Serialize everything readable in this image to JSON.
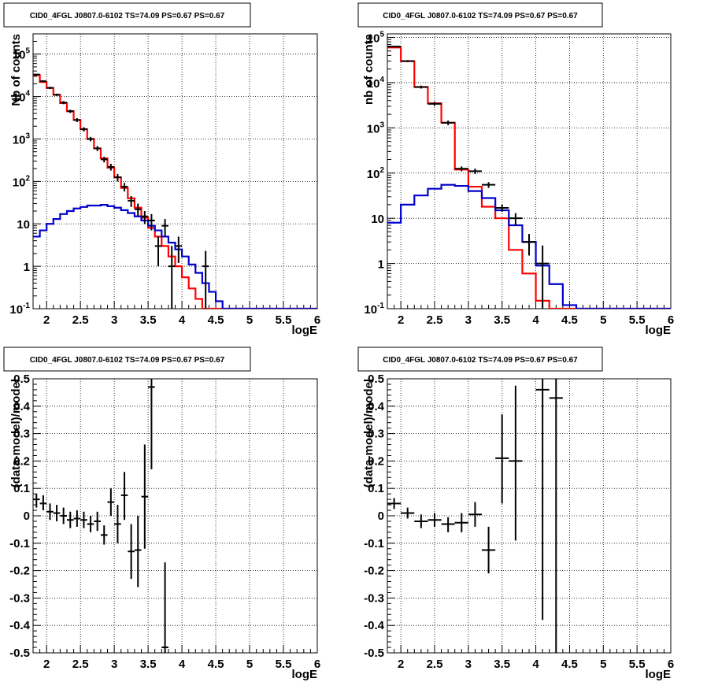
{
  "panel_title": "CID0_4FGL J0807.0-6102 TS=74.09 PS=0.67 PS=0.67",
  "colors": {
    "data": "#000000",
    "total_model": "#ff0000",
    "source_model": "#0000cc"
  },
  "chart_data": [
    {
      "id": "counts-fine",
      "type": "line",
      "title": "CID0_4FGL J0807.0-6102 TS=74.09 PS=0.67 PS=0.67",
      "xlabel": "logE",
      "ylabel": "Nb of counts",
      "xlim": [
        1.8,
        6.0
      ],
      "ylim": [
        0.1,
        300000
      ],
      "yscale": "log",
      "grid": true,
      "x_ticks": [
        "2",
        "2.5",
        "3",
        "3.5",
        "4",
        "4.5",
        "5",
        "5.5",
        "6"
      ],
      "y_ticks": [
        "10^-1",
        "1",
        "10",
        "10^2",
        "10^3",
        "10^4",
        "10^5"
      ],
      "bin_edges": [
        1.8,
        1.9,
        2.0,
        2.1,
        2.2,
        2.3,
        2.4,
        2.5,
        2.6,
        2.7,
        2.8,
        2.9,
        3.0,
        3.1,
        3.2,
        3.3,
        3.4,
        3.5,
        3.6,
        3.7,
        3.8,
        3.9,
        4.0,
        4.1,
        4.2,
        4.3,
        4.4,
        4.5,
        4.6,
        4.7,
        4.8,
        4.9,
        5.0,
        5.1,
        5.2,
        5.3,
        5.4,
        5.5,
        5.6,
        5.7,
        5.8,
        5.9,
        6.0
      ],
      "series": [
        {
          "name": "",
          "role": "total_model",
          "values": [
            32000,
            22000,
            16000,
            11000,
            7000,
            4500,
            2800,
            1700,
            1000,
            600,
            350,
            210,
            125,
            70,
            40,
            24,
            14,
            8,
            5,
            3,
            1.7,
            1,
            0.55,
            0.3,
            0.17,
            0.1,
            0.1,
            0.1,
            0.1,
            0.1,
            0.1,
            0.1,
            0.1,
            0.1,
            0.1,
            0.1,
            0.1,
            0.1,
            0.1,
            0.1,
            0.1,
            0.1
          ]
        },
        {
          "name": "",
          "role": "source_model",
          "values": [
            5,
            7,
            10,
            13,
            17,
            20,
            23,
            25,
            27,
            27,
            28,
            26,
            24,
            21,
            18,
            15,
            12,
            9,
            7,
            5,
            3.6,
            2.5,
            1.7,
            1.1,
            0.7,
            0.4,
            0.25,
            0.15,
            0.1,
            0.1,
            0.1,
            0.1,
            0.1,
            0.1,
            0.1,
            0.1,
            0.1,
            0.1,
            0.1,
            0.1,
            0.1,
            0.1
          ]
        }
      ],
      "points": [
        {
          "x": 1.85,
          "y": 33000,
          "ylo": 31500,
          "yhi": 34500
        },
        {
          "x": 1.95,
          "y": 23000,
          "ylo": 21800,
          "yhi": 24200
        },
        {
          "x": 2.05,
          "y": 16000,
          "ylo": 15000,
          "yhi": 17000
        },
        {
          "x": 2.15,
          "y": 11000,
          "ylo": 10300,
          "yhi": 11700
        },
        {
          "x": 2.25,
          "y": 7200,
          "ylo": 6600,
          "yhi": 7800
        },
        {
          "x": 2.35,
          "y": 4500,
          "ylo": 4100,
          "yhi": 4900
        },
        {
          "x": 2.45,
          "y": 2800,
          "ylo": 2500,
          "yhi": 3100
        },
        {
          "x": 2.55,
          "y": 1700,
          "ylo": 1500,
          "yhi": 1900
        },
        {
          "x": 2.65,
          "y": 1000,
          "ylo": 880,
          "yhi": 1120
        },
        {
          "x": 2.75,
          "y": 600,
          "ylo": 520,
          "yhi": 680
        },
        {
          "x": 2.85,
          "y": 330,
          "ylo": 280,
          "yhi": 380
        },
        {
          "x": 2.95,
          "y": 220,
          "ylo": 180,
          "yhi": 260
        },
        {
          "x": 3.05,
          "y": 125,
          "ylo": 100,
          "yhi": 150
        },
        {
          "x": 3.15,
          "y": 75,
          "ylo": 58,
          "yhi": 92
        },
        {
          "x": 3.25,
          "y": 35,
          "ylo": 25,
          "yhi": 45
        },
        {
          "x": 3.35,
          "y": 22,
          "ylo": 15,
          "yhi": 30
        },
        {
          "x": 3.45,
          "y": 15,
          "ylo": 10,
          "yhi": 20
        },
        {
          "x": 3.55,
          "y": 12,
          "ylo": 7,
          "yhi": 17
        },
        {
          "x": 3.65,
          "y": 3,
          "ylo": 1,
          "yhi": 5
        },
        {
          "x": 3.75,
          "y": 9,
          "ylo": 5,
          "yhi": 13
        },
        {
          "x": 3.85,
          "y": 1,
          "ylo": 0.1,
          "yhi": 3
        },
        {
          "x": 3.95,
          "y": 3,
          "ylo": 1.2,
          "yhi": 5
        },
        {
          "x": 4.35,
          "y": 1,
          "ylo": 0.1,
          "yhi": 2.3
        }
      ]
    },
    {
      "id": "counts-coarse",
      "type": "line",
      "title": "CID0_4FGL J0807.0-6102 TS=74.09 PS=0.67 PS=0.67",
      "xlabel": "logE",
      "ylabel": "nb of counts",
      "xlim": [
        1.8,
        6.0
      ],
      "ylim": [
        0.1,
        120000
      ],
      "yscale": "log",
      "grid": true,
      "x_ticks": [
        "2",
        "2.5",
        "3",
        "3.5",
        "4",
        "4.5",
        "5",
        "5.5",
        "6"
      ],
      "y_ticks": [
        "10^-1",
        "1",
        "10",
        "10^2",
        "10^3",
        "10^4",
        "10^5"
      ],
      "bin_edges": [
        1.8,
        2.0,
        2.2,
        2.4,
        2.6,
        2.8,
        3.0,
        3.2,
        3.4,
        3.6,
        3.8,
        4.0,
        4.2,
        4.4,
        4.6,
        4.8,
        5.0,
        5.2,
        5.4,
        5.6,
        5.8,
        6.0
      ],
      "series": [
        {
          "name": "",
          "role": "total_model",
          "values": [
            60000,
            30000,
            8000,
            3500,
            1300,
            120,
            50,
            18,
            10,
            2,
            0.6,
            0.15,
            0.1,
            0.1,
            0.1,
            0.1,
            0.1,
            0.1,
            0.1,
            0.1,
            0.1
          ]
        },
        {
          "name": "",
          "role": "source_model",
          "values": [
            8,
            20,
            32,
            45,
            55,
            52,
            40,
            28,
            15,
            7,
            3,
            0.9,
            0.35,
            0.12,
            0.1,
            0.1,
            0.1,
            0.1,
            0.1,
            0.1,
            0.1
          ]
        }
      ],
      "points": [
        {
          "x": 1.9,
          "y": 63000,
          "ylo": 61000,
          "yhi": 65000
        },
        {
          "x": 2.1,
          "y": 30000,
          "ylo": 28500,
          "yhi": 31500
        },
        {
          "x": 2.3,
          "y": 8000,
          "ylo": 7400,
          "yhi": 8600
        },
        {
          "x": 2.5,
          "y": 3400,
          "ylo": 3050,
          "yhi": 3750
        },
        {
          "x": 2.7,
          "y": 1300,
          "ylo": 1150,
          "yhi": 1450
        },
        {
          "x": 2.9,
          "y": 125,
          "ylo": 110,
          "yhi": 140
        },
        {
          "x": 3.1,
          "y": 110,
          "ylo": 95,
          "yhi": 125
        },
        {
          "x": 3.3,
          "y": 55,
          "ylo": 47,
          "yhi": 63
        },
        {
          "x": 3.5,
          "y": 17,
          "ylo": 14,
          "yhi": 20
        },
        {
          "x": 3.7,
          "y": 10,
          "ylo": 7,
          "yhi": 13
        },
        {
          "x": 3.9,
          "y": 3,
          "ylo": 1.5,
          "yhi": 4.5
        },
        {
          "x": 4.1,
          "y": 1,
          "ylo": 0.1,
          "yhi": 2.5
        }
      ]
    },
    {
      "id": "residuals-fine",
      "type": "scatter",
      "title": "CID0_4FGL J0807.0-6102 TS=74.09 PS=0.67 PS=0.67",
      "xlabel": "logE",
      "ylabel": "(data-model)/model",
      "xlim": [
        1.8,
        6.0
      ],
      "ylim": [
        -0.5,
        0.5
      ],
      "grid": true,
      "x_ticks": [
        "2",
        "2.5",
        "3",
        "3.5",
        "4",
        "4.5",
        "5",
        "5.5",
        "6"
      ],
      "y_ticks": [
        "-0.5",
        "-0.4",
        "-0.3",
        "-0.2",
        "-0.1",
        "0",
        "0.1",
        "0.2",
        "0.3",
        "0.4",
        "0.5"
      ],
      "points": [
        {
          "x": 1.85,
          "y": 0.06,
          "ylo": 0.03,
          "yhi": 0.08
        },
        {
          "x": 1.95,
          "y": 0.045,
          "ylo": 0.02,
          "yhi": 0.075
        },
        {
          "x": 2.05,
          "y": 0.015,
          "ylo": -0.015,
          "yhi": 0.045
        },
        {
          "x": 2.15,
          "y": 0.01,
          "ylo": -0.02,
          "yhi": 0.04
        },
        {
          "x": 2.25,
          "y": 0.0,
          "ylo": -0.03,
          "yhi": 0.03
        },
        {
          "x": 2.35,
          "y": -0.015,
          "ylo": -0.045,
          "yhi": 0.015
        },
        {
          "x": 2.45,
          "y": -0.01,
          "ylo": -0.04,
          "yhi": 0.02
        },
        {
          "x": 2.55,
          "y": -0.015,
          "ylo": -0.045,
          "yhi": 0.015
        },
        {
          "x": 2.65,
          "y": -0.03,
          "ylo": -0.06,
          "yhi": 0.0
        },
        {
          "x": 2.75,
          "y": -0.02,
          "ylo": -0.055,
          "yhi": 0.015
        },
        {
          "x": 2.85,
          "y": -0.07,
          "ylo": -0.105,
          "yhi": -0.035
        },
        {
          "x": 2.95,
          "y": 0.05,
          "ylo": 0.0,
          "yhi": 0.1
        },
        {
          "x": 3.05,
          "y": -0.03,
          "ylo": -0.1,
          "yhi": 0.04
        },
        {
          "x": 3.15,
          "y": 0.075,
          "ylo": -0.015,
          "yhi": 0.16
        },
        {
          "x": 3.25,
          "y": -0.13,
          "ylo": -0.23,
          "yhi": -0.03
        },
        {
          "x": 3.35,
          "y": -0.125,
          "ylo": -0.26,
          "yhi": 0.0
        },
        {
          "x": 3.45,
          "y": 0.07,
          "ylo": -0.12,
          "yhi": 0.26
        },
        {
          "x": 3.55,
          "y": 0.47,
          "ylo": 0.17,
          "yhi": 0.5
        },
        {
          "x": 3.75,
          "y": -0.48,
          "ylo": -0.5,
          "yhi": -0.17
        }
      ]
    },
    {
      "id": "residuals-coarse",
      "type": "scatter",
      "title": "CID0_4FGL J0807.0-6102 TS=74.09 PS=0.67 PS=0.67",
      "xlabel": "logE",
      "ylabel": "(data-model)/model",
      "xlim": [
        1.8,
        6.0
      ],
      "ylim": [
        -0.5,
        0.5
      ],
      "grid": true,
      "x_ticks": [
        "2",
        "2.5",
        "3",
        "3.5",
        "4",
        "4.5",
        "5",
        "5.5",
        "6"
      ],
      "y_ticks": [
        "-0.5",
        "-0.4",
        "-0.3",
        "-0.2",
        "-0.1",
        "0",
        "0.1",
        "0.2",
        "0.3",
        "0.4",
        "0.5"
      ],
      "points": [
        {
          "x": 1.9,
          "y": 0.045,
          "ylo": 0.025,
          "yhi": 0.065
        },
        {
          "x": 2.1,
          "y": 0.01,
          "ylo": -0.01,
          "yhi": 0.03
        },
        {
          "x": 2.3,
          "y": -0.02,
          "ylo": -0.045,
          "yhi": 0.005
        },
        {
          "x": 2.5,
          "y": -0.015,
          "ylo": -0.04,
          "yhi": 0.01
        },
        {
          "x": 2.7,
          "y": -0.03,
          "ylo": -0.06,
          "yhi": -0.005
        },
        {
          "x": 2.9,
          "y": -0.025,
          "ylo": -0.06,
          "yhi": 0.01
        },
        {
          "x": 3.1,
          "y": 0.005,
          "ylo": -0.04,
          "yhi": 0.05
        },
        {
          "x": 3.3,
          "y": -0.125,
          "ylo": -0.21,
          "yhi": -0.04
        },
        {
          "x": 3.5,
          "y": 0.21,
          "ylo": 0.045,
          "yhi": 0.37
        },
        {
          "x": 3.7,
          "y": 0.2,
          "ylo": -0.09,
          "yhi": 0.475
        },
        {
          "x": 4.1,
          "y": 0.46,
          "ylo": -0.38,
          "yhi": 0.5
        },
        {
          "x": 4.3,
          "y": 0.43,
          "ylo": -0.5,
          "yhi": 0.5
        }
      ]
    }
  ]
}
